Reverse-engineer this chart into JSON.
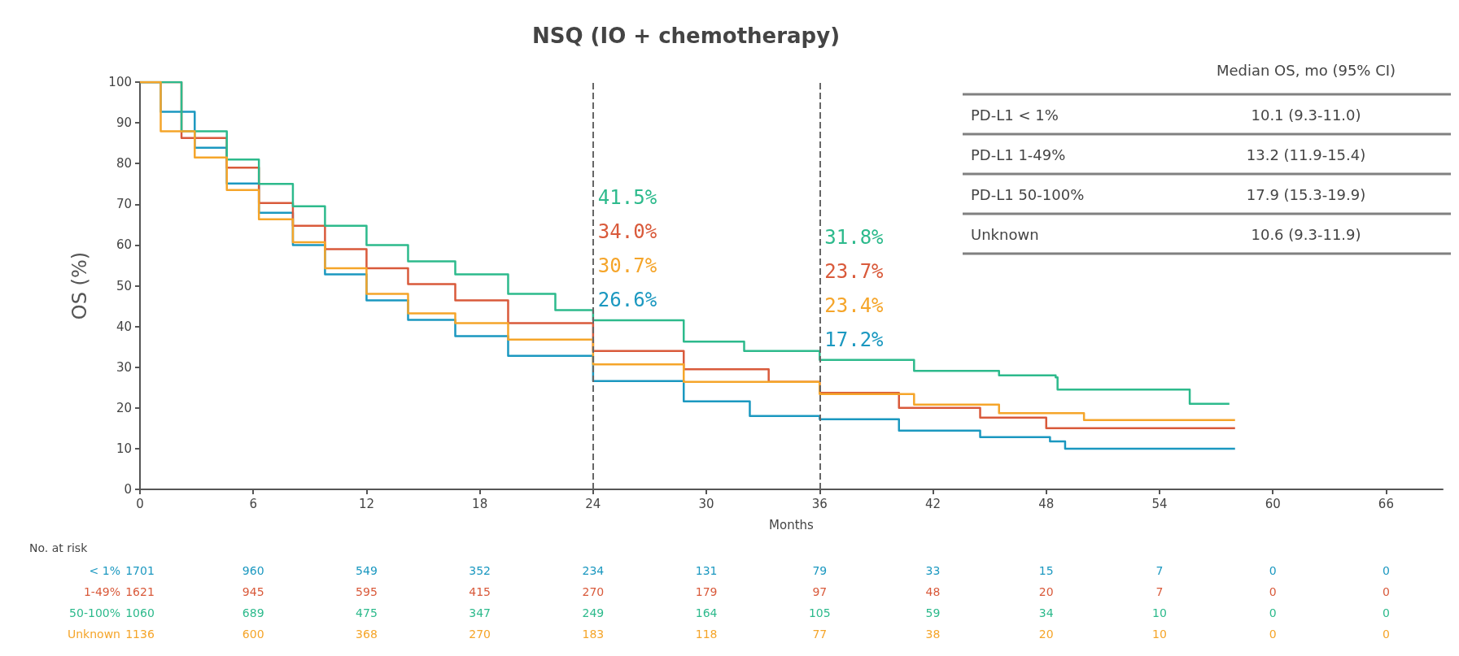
{
  "chart_data": {
    "type": "step",
    "title": "NSQ (IO + chemotherapy)",
    "xlabel": "Months",
    "ylabel": "OS (%)",
    "legend_title": "No. at risk",
    "xlim": [
      0,
      69
    ],
    "xticks": [
      0,
      6,
      12,
      18,
      24,
      30,
      36,
      42,
      48,
      54,
      60,
      66
    ],
    "ylim": [
      0,
      100
    ],
    "yticks": [
      0,
      10,
      20,
      30,
      40,
      50,
      60,
      70,
      80,
      90,
      100
    ],
    "grid": false,
    "line_style": "solid",
    "series": [
      {
        "name": "< 1%",
        "color": "#1b98c0",
        "x": [
          0,
          1.1,
          2.9,
          4.6,
          6.3,
          8.1,
          9.8,
          12,
          14.2,
          16.7,
          19.5,
          24,
          28.8,
          32.3,
          36,
          40.2,
          44.5,
          48.2,
          49,
          58
        ],
        "values": [
          100,
          92.7,
          83.9,
          75.1,
          67.9,
          60,
          52.8,
          46.4,
          41.6,
          37.6,
          32.8,
          26.6,
          21.6,
          18,
          17.2,
          14.4,
          12.8,
          11.8,
          10,
          10
        ]
      },
      {
        "name": "1-49%",
        "color": "#d95a3b",
        "x": [
          0,
          2.2,
          4.6,
          6.3,
          8.1,
          9.8,
          12,
          14.2,
          16.7,
          19.5,
          24,
          28.8,
          33.3,
          36,
          40.2,
          44.5,
          48,
          58
        ],
        "values": [
          100,
          86.3,
          79,
          70.3,
          64.7,
          59,
          54.3,
          50.4,
          46.4,
          40.8,
          34,
          29.5,
          26.4,
          23.7,
          20,
          17.6,
          15,
          15
        ]
      },
      {
        "name": "50-100%",
        "color": "#2dba8c",
        "x": [
          0,
          2.2,
          4.6,
          6.3,
          8.1,
          9.8,
          12,
          14.2,
          16.7,
          19.5,
          22,
          24,
          28.8,
          32,
          36,
          41,
          45.5,
          48.5,
          48.6,
          55.5,
          55.6,
          57.7
        ],
        "values": [
          100,
          87.9,
          81,
          75,
          69.5,
          64.7,
          60,
          56,
          52.8,
          48,
          44,
          41.5,
          36.3,
          34,
          31.8,
          29.1,
          28,
          27.5,
          24.5,
          24.5,
          21,
          21
        ]
      },
      {
        "name": "Unknown",
        "color": "#f5a52a",
        "x": [
          0,
          1.1,
          2.9,
          4.6,
          6.3,
          8.1,
          9.8,
          12,
          14.2,
          16.7,
          19.5,
          24,
          28.8,
          36,
          41,
          45.5,
          50,
          58
        ],
        "values": [
          100,
          87.9,
          81.5,
          73.5,
          66.3,
          60.7,
          54.3,
          48,
          43.2,
          40.8,
          36.8,
          30.7,
          26.4,
          23.4,
          20.8,
          18.7,
          17,
          17
        ]
      }
    ],
    "ref_lines": [
      {
        "axis": "x",
        "value": 24,
        "color": "#666666",
        "line_style": "dashed"
      },
      {
        "axis": "x",
        "value": 36,
        "color": "#666666",
        "line_style": "dashed"
      }
    ],
    "annotations": [
      "Median OS, mo (95% CI)",
      "PD-L1 < 1%",
      "10.1 (9.3-11.0)",
      "PD-L1 1-49%",
      "13.2 (11.9-15.4)",
      "PD-L1 50-100%",
      "17.9 (15.3-19.9)",
      "Unknown",
      "10.6 (9.3-11.9)",
      "41.5%",
      "34.0%",
      "30.7%",
      "26.6%",
      "31.8%",
      "23.7%",
      "23.4%",
      "17.2%",
      "1701",
      "1621",
      "1060",
      "1136",
      "960",
      "945",
      "689",
      "600",
      "549",
      "595",
      "475",
      "368",
      "352",
      "415",
      "347",
      "270",
      "234",
      "270",
      "249",
      "183",
      "131",
      "179",
      "164",
      "118",
      "79",
      "97",
      "105",
      "77",
      "33",
      "48",
      "59",
      "38",
      "15",
      "20",
      "34",
      "20",
      "7",
      "7",
      "10",
      "10",
      "0",
      "0",
      "0",
      "0",
      "0",
      "0",
      "0",
      "0"
    ]
  }
}
